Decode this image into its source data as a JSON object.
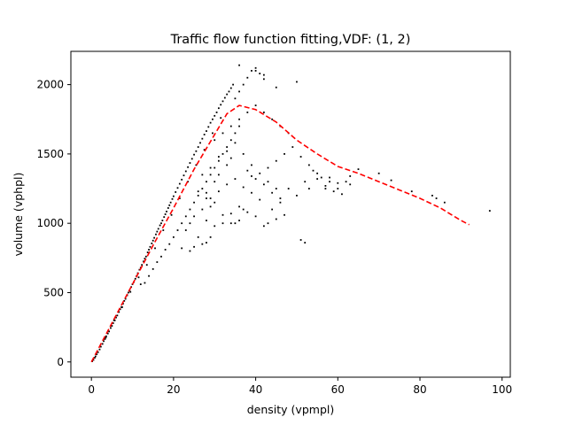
{
  "chart_data": {
    "type": "scatter",
    "title": "Traffic flow function fitting,VDF: (1, 2)",
    "xlabel": "density (vpmpl)",
    "ylabel": "volume (vphpl)",
    "xlim": [
      -5,
      102
    ],
    "ylim": [
      -110,
      2240
    ],
    "xticks": [
      0,
      20,
      40,
      60,
      80,
      100
    ],
    "yticks": [
      0,
      500,
      1000,
      1500,
      2000
    ],
    "grid": false,
    "legend": "none",
    "series": [
      {
        "kind": "points",
        "color": "#000000",
        "marker": "dot",
        "points": [
          [
            0.2,
            5
          ],
          [
            0.5,
            15
          ],
          [
            0.8,
            30
          ],
          [
            1.0,
            40
          ],
          [
            1.3,
            55
          ],
          [
            1.6,
            70
          ],
          [
            2.0,
            90
          ],
          [
            2.3,
            110
          ],
          [
            2.7,
            130
          ],
          [
            3.0,
            150
          ],
          [
            3.3,
            165
          ],
          [
            3.6,
            185
          ],
          [
            4.0,
            205
          ],
          [
            4.3,
            220
          ],
          [
            4.7,
            245
          ],
          [
            5.0,
            260
          ],
          [
            5.3,
            280
          ],
          [
            5.7,
            300
          ],
          [
            6.0,
            320
          ],
          [
            6.3,
            335
          ],
          [
            6.7,
            360
          ],
          [
            7.0,
            380
          ],
          [
            7.3,
            395
          ],
          [
            7.7,
            420
          ],
          [
            8.0,
            440
          ],
          [
            8.3,
            455
          ],
          [
            8.7,
            480
          ],
          [
            9.0,
            500
          ],
          [
            9.3,
            515
          ],
          [
            9.7,
            540
          ],
          [
            10.0,
            560
          ],
          [
            10.3,
            575
          ],
          [
            10.7,
            600
          ],
          [
            11.0,
            620
          ],
          [
            11.3,
            640
          ],
          [
            11.7,
            665
          ],
          [
            12.0,
            680
          ],
          [
            12.3,
            700
          ],
          [
            12.7,
            725
          ],
          [
            13.0,
            745
          ],
          [
            13.3,
            760
          ],
          [
            13.7,
            790
          ],
          [
            14.0,
            810
          ],
          [
            14.3,
            830
          ],
          [
            14.7,
            855
          ],
          [
            15.0,
            875
          ],
          [
            15.3,
            895
          ],
          [
            15.7,
            920
          ],
          [
            16.0,
            940
          ],
          [
            16.3,
            960
          ],
          [
            16.7,
            985
          ],
          [
            17.0,
            1000
          ],
          [
            17.3,
            1020
          ],
          [
            17.7,
            1045
          ],
          [
            18.0,
            1065
          ],
          [
            18.3,
            1085
          ],
          [
            18.7,
            1110
          ],
          [
            19.0,
            1130
          ],
          [
            19.3,
            1150
          ],
          [
            19.7,
            1175
          ],
          [
            20.0,
            1195
          ],
          [
            20.5,
            1225
          ],
          [
            21.0,
            1255
          ],
          [
            21.5,
            1285
          ],
          [
            22.0,
            1315
          ],
          [
            22.5,
            1345
          ],
          [
            23.0,
            1375
          ],
          [
            23.5,
            1405
          ],
          [
            24.0,
            1435
          ],
          [
            24.5,
            1465
          ],
          [
            25.0,
            1495
          ],
          [
            25.5,
            1520
          ],
          [
            26.0,
            1550
          ],
          [
            26.5,
            1580
          ],
          [
            27.0,
            1610
          ],
          [
            27.5,
            1640
          ],
          [
            28.0,
            1665
          ],
          [
            28.5,
            1695
          ],
          [
            29.0,
            1725
          ],
          [
            29.5,
            1750
          ],
          [
            30.0,
            1775
          ],
          [
            30.5,
            1800
          ],
          [
            31.0,
            1830
          ],
          [
            31.5,
            1855
          ],
          [
            32.0,
            1880
          ],
          [
            32.5,
            1905
          ],
          [
            33.0,
            1930
          ],
          [
            33.5,
            1950
          ],
          [
            34.0,
            1975
          ],
          [
            34.5,
            2000
          ],
          [
            3.5,
            175
          ],
          [
            5.5,
            300
          ],
          [
            7.5,
            395
          ],
          [
            9.5,
            505
          ],
          [
            11.5,
            610
          ],
          [
            13.5,
            700
          ],
          [
            15.5,
            820
          ],
          [
            17.5,
            950
          ],
          [
            19.5,
            1060
          ],
          [
            21.5,
            1180
          ],
          [
            23.5,
            1300
          ],
          [
            25.5,
            1420
          ],
          [
            27.5,
            1530
          ],
          [
            29.5,
            1650
          ],
          [
            31.5,
            1760
          ],
          [
            12.0,
            560
          ],
          [
            13.0,
            570
          ],
          [
            14.0,
            620
          ],
          [
            15.0,
            670
          ],
          [
            16.0,
            720
          ],
          [
            17.0,
            760
          ],
          [
            18.0,
            810
          ],
          [
            19.0,
            850
          ],
          [
            20.0,
            900
          ],
          [
            21.0,
            950
          ],
          [
            22.0,
            1000
          ],
          [
            23.0,
            1050
          ],
          [
            24.0,
            1100
          ],
          [
            25.0,
            1150
          ],
          [
            26.0,
            1200
          ],
          [
            27.0,
            1250
          ],
          [
            28.0,
            1300
          ],
          [
            29.0,
            1350
          ],
          [
            30.0,
            1400
          ],
          [
            31.0,
            1450
          ],
          [
            32.0,
            1500
          ],
          [
            33.0,
            1550
          ],
          [
            34.0,
            1600
          ],
          [
            35.0,
            1650
          ],
          [
            36.0,
            1700
          ],
          [
            22.0,
            820
          ],
          [
            24.0,
            800
          ],
          [
            26.0,
            900
          ],
          [
            28.0,
            860
          ],
          [
            30.0,
            980
          ],
          [
            32.0,
            1060
          ],
          [
            34.0,
            1000
          ],
          [
            36.0,
            1120
          ],
          [
            38.0,
            1080
          ],
          [
            40.0,
            1050
          ],
          [
            42.0,
            980
          ],
          [
            44.0,
            1100
          ],
          [
            46.0,
            1150
          ],
          [
            48.0,
            1250
          ],
          [
            50.0,
            1200
          ],
          [
            52.0,
            1300
          ],
          [
            54.0,
            1380
          ],
          [
            56.0,
            1330
          ],
          [
            58.0,
            1300
          ],
          [
            60.0,
            1250
          ],
          [
            25.0,
            1050
          ],
          [
            27.0,
            1100
          ],
          [
            29.0,
            1180
          ],
          [
            31.0,
            1230
          ],
          [
            33.0,
            1280
          ],
          [
            35.0,
            1320
          ],
          [
            37.0,
            1260
          ],
          [
            39.0,
            1220
          ],
          [
            41.0,
            1170
          ],
          [
            43.0,
            1400
          ],
          [
            45.0,
            1450
          ],
          [
            47.0,
            1500
          ],
          [
            49.0,
            1550
          ],
          [
            51.0,
            1480
          ],
          [
            53.0,
            1420
          ],
          [
            55.0,
            1360
          ],
          [
            57.0,
            1250
          ],
          [
            59.0,
            1230
          ],
          [
            61.0,
            1210
          ],
          [
            63.0,
            1340
          ],
          [
            27.0,
            1350
          ],
          [
            29.0,
            1400
          ],
          [
            31.0,
            1480
          ],
          [
            33.0,
            1520
          ],
          [
            35.0,
            1580
          ],
          [
            37.0,
            1500
          ],
          [
            39.0,
            1420
          ],
          [
            41.0,
            1360
          ],
          [
            43.0,
            1300
          ],
          [
            45.0,
            1250
          ],
          [
            30.0,
            1600
          ],
          [
            32.0,
            1650
          ],
          [
            34.0,
            1700
          ],
          [
            36.0,
            1750
          ],
          [
            38.0,
            1800
          ],
          [
            40.0,
            1850
          ],
          [
            42.0,
            1800
          ],
          [
            44.0,
            1750
          ],
          [
            46.0,
            1700
          ],
          [
            48.0,
            1650
          ],
          [
            35.0,
            1900
          ],
          [
            36.0,
            1950
          ],
          [
            37.0,
            2000
          ],
          [
            38.0,
            2050
          ],
          [
            39.0,
            2100
          ],
          [
            40.0,
            2120
          ],
          [
            41.0,
            2080
          ],
          [
            42.0,
            2040
          ],
          [
            45.0,
            1980
          ],
          [
            50.0,
            2020
          ],
          [
            36.0,
            2140
          ],
          [
            40.0,
            2100
          ],
          [
            42.0,
            2070
          ],
          [
            23.0,
            950
          ],
          [
            24.0,
            1000
          ],
          [
            28.0,
            1020
          ],
          [
            29.0,
            900
          ],
          [
            35.0,
            1000
          ],
          [
            36.0,
            1020
          ],
          [
            37.0,
            1100
          ],
          [
            43.0,
            1000
          ],
          [
            45.0,
            1030
          ],
          [
            47.0,
            1060
          ],
          [
            51.0,
            880
          ],
          [
            52.0,
            860
          ],
          [
            57.0,
            1270
          ],
          [
            62.0,
            1300
          ],
          [
            63.0,
            1280
          ],
          [
            73.0,
            1310
          ],
          [
            78.0,
            1230
          ],
          [
            83.0,
            1200
          ],
          [
            84.0,
            1180
          ],
          [
            86.0,
            1150
          ],
          [
            97.0,
            1090
          ],
          [
            40.0,
            1320
          ],
          [
            42.0,
            1280
          ],
          [
            44.0,
            1220
          ],
          [
            46.0,
            1180
          ],
          [
            53.0,
            1250
          ],
          [
            55.0,
            1320
          ],
          [
            58.0,
            1330
          ],
          [
            60.0,
            1290
          ],
          [
            65.0,
            1390
          ],
          [
            70.0,
            1360
          ],
          [
            25.0,
            830
          ],
          [
            27.0,
            850
          ],
          [
            32.0,
            1000
          ],
          [
            34.0,
            1070
          ],
          [
            28.0,
            1220
          ],
          [
            30.0,
            1300
          ],
          [
            31.0,
            1350
          ],
          [
            33.0,
            1420
          ],
          [
            34.0,
            1470
          ],
          [
            38.0,
            1380
          ],
          [
            39.0,
            1340
          ],
          [
            26.0,
            1230
          ],
          [
            28.0,
            1180
          ],
          [
            30.0,
            1150
          ],
          [
            29.0,
            1120
          ]
        ]
      },
      {
        "kind": "fitted-curve",
        "color": "#ff0000",
        "style": "dashed",
        "points": [
          [
            0,
            0
          ],
          [
            5,
            280
          ],
          [
            10,
            560
          ],
          [
            15,
            840
          ],
          [
            20,
            1110
          ],
          [
            25,
            1390
          ],
          [
            30,
            1640
          ],
          [
            33,
            1790
          ],
          [
            36,
            1850
          ],
          [
            40,
            1820
          ],
          [
            45,
            1730
          ],
          [
            50,
            1600
          ],
          [
            55,
            1500
          ],
          [
            60,
            1410
          ],
          [
            65,
            1360
          ],
          [
            70,
            1300
          ],
          [
            75,
            1240
          ],
          [
            80,
            1180
          ],
          [
            85,
            1110
          ],
          [
            90,
            1020
          ],
          [
            92,
            990
          ]
        ]
      }
    ]
  }
}
